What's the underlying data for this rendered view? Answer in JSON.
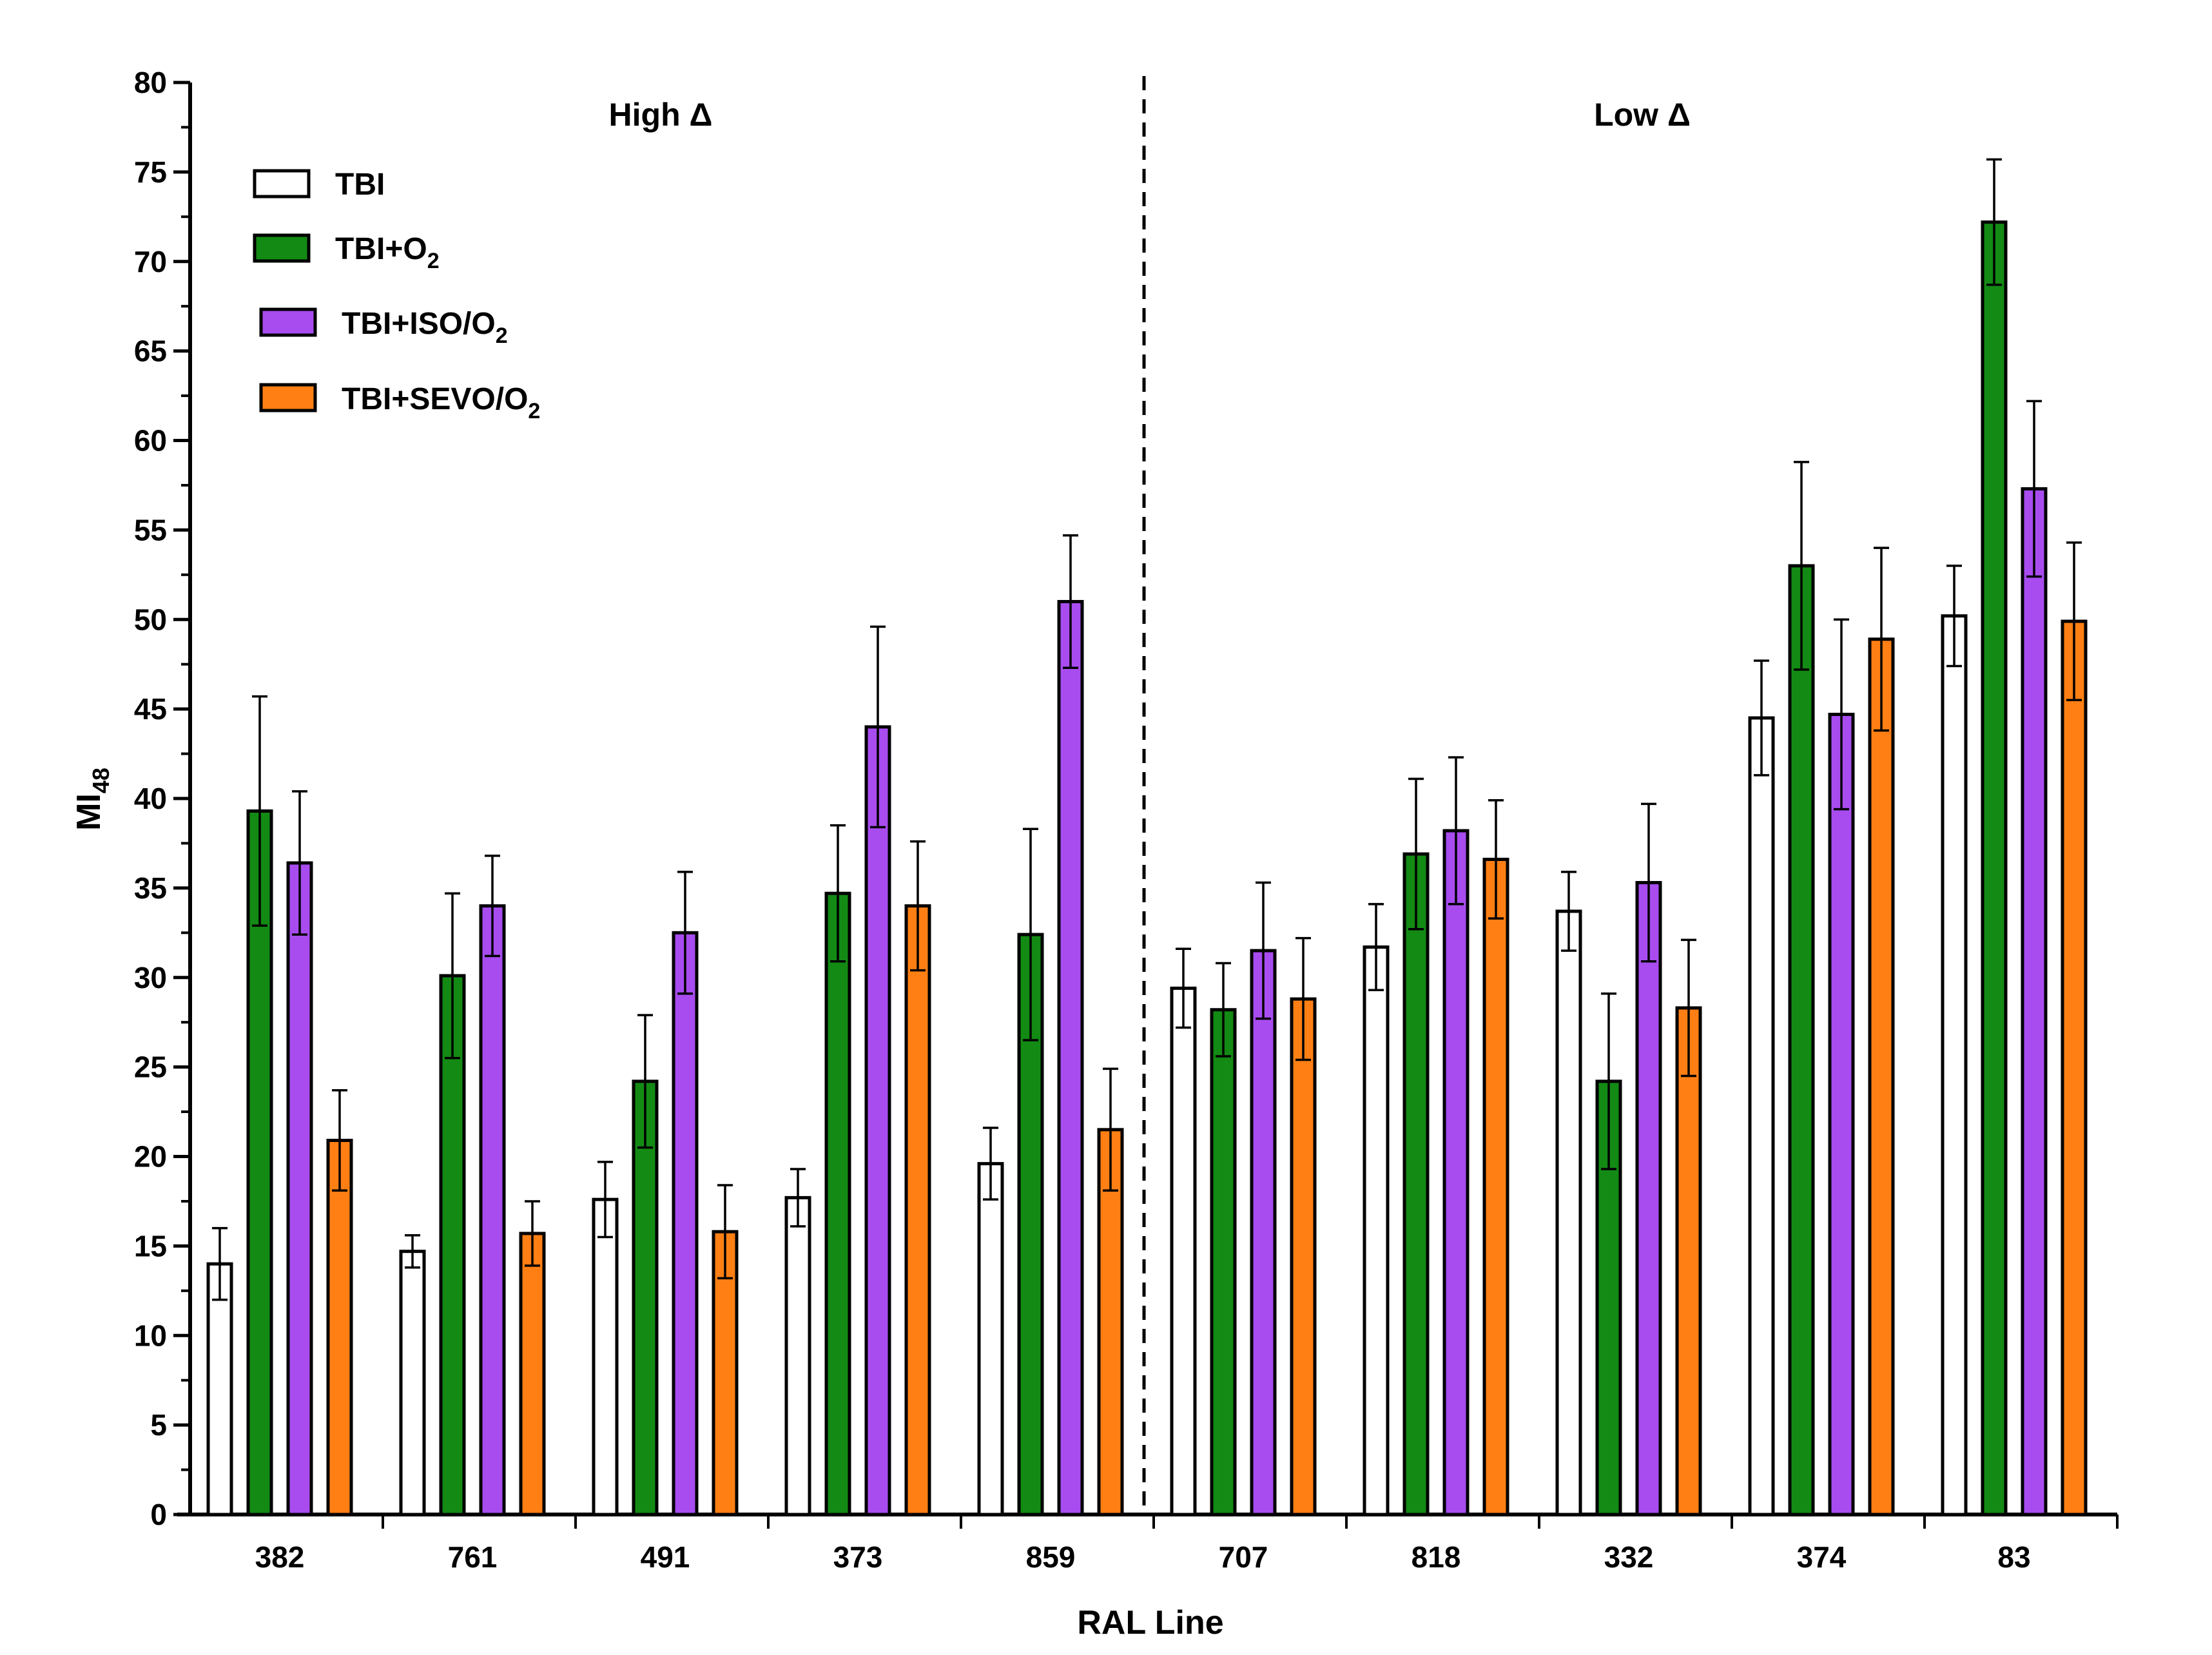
{
  "chart_data": {
    "type": "bar",
    "title": "",
    "xlabel": "RAL Line",
    "ylabel": "MI",
    "ylabel_sub": "48",
    "ylim": [
      0,
      80
    ],
    "y_ticks": [
      0,
      5,
      10,
      15,
      20,
      25,
      30,
      35,
      40,
      45,
      50,
      55,
      60,
      65,
      70,
      75,
      80
    ],
    "categories": [
      "382",
      "761",
      "491",
      "373",
      "859",
      "707",
      "818",
      "332",
      "374",
      "83"
    ],
    "regions": [
      {
        "label": "High Δ",
        "categories": [
          "382",
          "761",
          "491",
          "373",
          "859"
        ]
      },
      {
        "label": "Low Δ",
        "categories": [
          "707",
          "818",
          "332",
          "374",
          "83"
        ]
      }
    ],
    "legend_position": "top-left",
    "series": [
      {
        "name": "TBI",
        "label_main": "TBI",
        "label_sub": "",
        "color": "#ffffff",
        "values": [
          14.0,
          14.7,
          17.6,
          17.7,
          19.6,
          29.4,
          31.7,
          33.7,
          44.5,
          50.2
        ],
        "errors": [
          2.0,
          0.9,
          2.1,
          1.6,
          2.0,
          2.2,
          2.4,
          2.2,
          3.2,
          2.8
        ]
      },
      {
        "name": "TBI+O2",
        "label_main": "TBI+O",
        "label_sub": "2",
        "color": "#138a14",
        "values": [
          39.3,
          30.1,
          24.2,
          34.7,
          32.4,
          28.2,
          36.9,
          24.2,
          53.0,
          72.2
        ],
        "errors": [
          6.4,
          4.6,
          3.7,
          3.8,
          5.9,
          2.6,
          4.2,
          4.9,
          5.8,
          3.5
        ]
      },
      {
        "name": "TBI+ISO/O2",
        "label_main": "TBI+ISO/O",
        "label_sub": "2",
        "color": "#a84cf0",
        "values": [
          36.4,
          34.0,
          32.5,
          44.0,
          51.0,
          31.5,
          38.2,
          35.3,
          44.7,
          57.3
        ],
        "errors": [
          4.0,
          2.8,
          3.4,
          5.6,
          3.7,
          3.8,
          4.1,
          4.4,
          5.3,
          4.9
        ]
      },
      {
        "name": "TBI+SEVO/O2",
        "label_main": "TBI+SEVO/O",
        "label_sub": "2",
        "color": "#ff7f14",
        "values": [
          20.9,
          15.7,
          15.8,
          34.0,
          21.5,
          28.8,
          36.6,
          28.3,
          48.9,
          49.9
        ],
        "errors": [
          2.8,
          1.8,
          2.6,
          3.6,
          3.4,
          3.4,
          3.3,
          3.8,
          5.1,
          4.4
        ]
      }
    ]
  }
}
